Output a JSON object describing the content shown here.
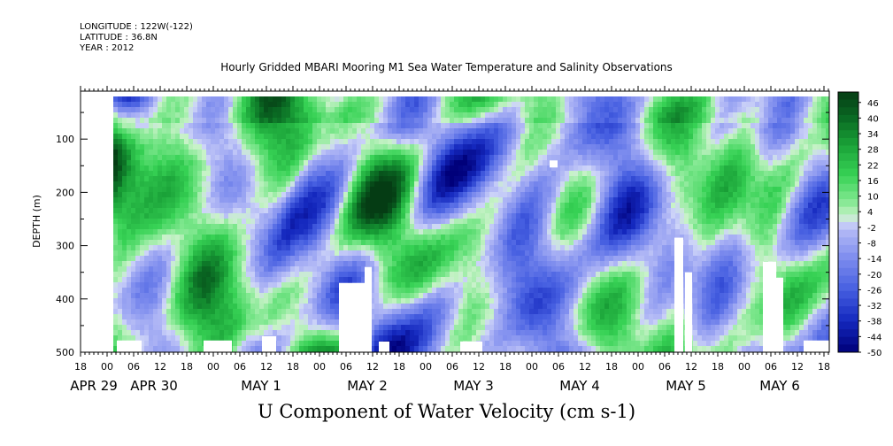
{
  "header": {
    "longitude": "LONGITUDE : 122W(-122)",
    "latitude": "LATITUDE : 36.8N",
    "year": "YEAR : 2012"
  },
  "chart_data": {
    "type": "heatmap",
    "title": "Hourly Gridded MBARI Mooring M1 Sea Water Temperature and Salinity Observations",
    "xlabel": "U Component of Water Velocity (cm s-1)",
    "ylabel": "DEPTH (m)",
    "ylim": [
      500,
      10
    ],
    "yticks": [
      "100",
      "200",
      "300",
      "400",
      "500"
    ],
    "x_hour_ticks": [
      "18",
      "00",
      "06",
      "12",
      "18",
      "00",
      "06",
      "12",
      "18",
      "00",
      "06",
      "12",
      "18",
      "00",
      "06",
      "12",
      "18",
      "00",
      "06",
      "12",
      "18",
      "00",
      "06",
      "12",
      "18",
      "00",
      "06",
      "12",
      "18"
    ],
    "x_day_labels": [
      "APR 29",
      "APR 30",
      "MAY  1",
      "MAY  2",
      "MAY  3",
      "MAY  4",
      "MAY  5",
      "MAY  6"
    ],
    "colorbar": {
      "labels": [
        "46",
        "40",
        "34",
        "28",
        "22",
        "16",
        "10",
        "4",
        "-2",
        "-8",
        "-14",
        "-20",
        "-26",
        "-32",
        "-38",
        "-44",
        "-50"
      ],
      "range": [
        -50,
        50
      ]
    },
    "colors": {
      "positive_dark": "#0a4a1e",
      "positive_mid": "#2ecc55",
      "positive_light": "#a6f0b0",
      "negative_light": "#c4c8f4",
      "negative_mid": "#6c7ce4",
      "negative_dark": "#00007a"
    }
  }
}
